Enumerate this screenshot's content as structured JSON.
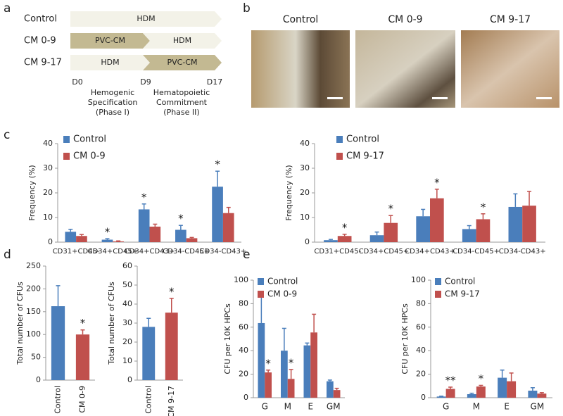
{
  "panel_labels": [
    "a",
    "b",
    "c",
    "d",
    "e"
  ],
  "timeline": {
    "rows": [
      {
        "label": "Control",
        "segments": [
          {
            "label": "HDM",
            "color": "#f3f2e8"
          }
        ]
      },
      {
        "label": "CM 0-9",
        "segments": [
          {
            "label": "PVC-CM",
            "color": "#c3b992"
          },
          {
            "label": "HDM",
            "color": "#f3f2e8"
          }
        ]
      },
      {
        "label": "CM 9-17",
        "segments": [
          {
            "label": "HDM",
            "color": "#f3f2e8"
          },
          {
            "label": "PVC-CM",
            "color": "#c3b992"
          }
        ]
      }
    ],
    "days": [
      "D0",
      "D9",
      "D17"
    ],
    "phases": [
      [
        "Hemogenic",
        "Specification",
        "(Phase I)"
      ],
      [
        "Hematopoietic",
        "Commitment",
        "(Phase II)"
      ]
    ]
  },
  "micrographs": {
    "titles": [
      "Control",
      "CM 0-9",
      "CM 9-17"
    ]
  },
  "chart_data": [
    {
      "type": "bar",
      "ylabel": "Frequency (%)",
      "categories": [
        "CD31+CD45-",
        "CD34+CD45+",
        "CD34+CD43+",
        "CD34-CD45+",
        "CD34-CD43+"
      ],
      "series": [
        {
          "name": "Control",
          "color": "#4a7ebb",
          "values": [
            4.2,
            1.0,
            13.3,
            5.0,
            22.5
          ],
          "errors": [
            1.0,
            0.4,
            2.2,
            1.8,
            6.3
          ],
          "significance": [
            null,
            "*",
            "*",
            "*",
            "*"
          ]
        },
        {
          "name": "CM 0-9",
          "color": "#c0504d",
          "values": [
            2.5,
            0.3,
            6.3,
            1.6,
            11.8
          ],
          "errors": [
            0.6,
            0.2,
            1.0,
            0.3,
            2.3
          ],
          "significance": [
            null,
            null,
            null,
            null,
            null
          ]
        }
      ],
      "ylim": [
        0,
        40
      ],
      "yticks": [
        0,
        10,
        20,
        30,
        40
      ],
      "legend": "upper left"
    },
    {
      "type": "bar",
      "ylabel": "Frequency (%)",
      "categories": [
        "CD31+CD45-",
        "CD34+CD45+",
        "CD34+CD43+",
        "CD34-CD45+",
        "CD34-CD43+"
      ],
      "series": [
        {
          "name": "Control",
          "color": "#4a7ebb",
          "values": [
            0.8,
            2.8,
            10.5,
            5.3,
            14.3
          ],
          "errors": [
            0.3,
            1.3,
            2.8,
            1.4,
            5.3
          ],
          "significance": [
            null,
            null,
            null,
            null,
            null
          ]
        },
        {
          "name": "CM 9-17",
          "color": "#c0504d",
          "values": [
            2.5,
            7.8,
            17.8,
            9.3,
            14.8
          ],
          "errors": [
            0.7,
            3.0,
            3.7,
            2.2,
            5.8
          ],
          "significance": [
            "*",
            "*",
            "*",
            "*",
            null
          ]
        }
      ],
      "ylim": [
        0,
        40
      ],
      "yticks": [
        0,
        10,
        20,
        30,
        40
      ],
      "legend": "upper left"
    },
    {
      "type": "bar",
      "ylabel": "Total number of CFUs",
      "categories": [
        "Control",
        "CM 0-9"
      ],
      "values": [
        162,
        100
      ],
      "errors": [
        45,
        10
      ],
      "colors": [
        "#4a7ebb",
        "#c0504d"
      ],
      "significance": [
        null,
        "*"
      ],
      "ylim": [
        0,
        250
      ],
      "yticks": [
        0,
        50,
        100,
        150,
        200,
        250
      ],
      "xtick_rotation": 90
    },
    {
      "type": "bar",
      "ylabel": "Total number of CFUs",
      "categories": [
        "Control",
        "CM 9-17"
      ],
      "values": [
        28,
        35.5
      ],
      "errors": [
        4.5,
        7.5
      ],
      "colors": [
        "#4a7ebb",
        "#c0504d"
      ],
      "significance": [
        null,
        "*"
      ],
      "ylim": [
        0,
        60
      ],
      "yticks": [
        0,
        10,
        20,
        30,
        40,
        50,
        60
      ],
      "xtick_rotation": 90
    },
    {
      "type": "bar",
      "ylabel": "CFU per 10K HPCs",
      "categories": [
        "G",
        "M",
        "E",
        "GM"
      ],
      "series": [
        {
          "name": "Control",
          "color": "#4a7ebb",
          "values": [
            63.5,
            40,
            44.5,
            14
          ],
          "errors": [
            22,
            19,
            2,
            1
          ],
          "significance": [
            null,
            null,
            null,
            null
          ]
        },
        {
          "name": "CM 0-9",
          "color": "#c0504d",
          "values": [
            21.5,
            16,
            55.5,
            6.5
          ],
          "errors": [
            2,
            8,
            15.5,
            1.5
          ],
          "significance": [
            "*",
            "*",
            null,
            null
          ]
        }
      ],
      "ylim": [
        0,
        100
      ],
      "yticks": [
        0,
        20,
        40,
        60,
        80,
        100
      ],
      "legend": "upper left"
    },
    {
      "type": "bar",
      "ylabel": "CFU per 10K HPCs",
      "categories": [
        "G",
        "M",
        "E",
        "GM"
      ],
      "series": [
        {
          "name": "Control",
          "color": "#4a7ebb",
          "values": [
            1,
            3,
            17,
            6
          ],
          "errors": [
            0.3,
            0.8,
            6.5,
            2.5
          ],
          "significance": [
            null,
            null,
            null,
            null
          ]
        },
        {
          "name": "CM 9-17",
          "color": "#c0504d",
          "values": [
            7.5,
            9.5,
            14,
            3.5
          ],
          "errors": [
            1.5,
            1,
            7,
            0.8
          ],
          "significance": [
            "**",
            "*",
            null,
            null
          ]
        }
      ],
      "ylim": [
        0,
        100
      ],
      "yticks": [
        0,
        20,
        40,
        60,
        80,
        100
      ],
      "legend": "upper left"
    }
  ]
}
